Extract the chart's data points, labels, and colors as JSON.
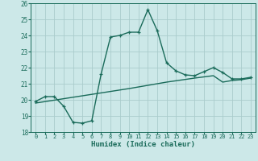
{
  "xlabel": "Humidex (Indice chaleur)",
  "bg_color": "#cce8e8",
  "line_color": "#1a6b5a",
  "grid_color": "#aacccc",
  "xlim": [
    -0.5,
    23.5
  ],
  "ylim": [
    18,
    26
  ],
  "xticks": [
    0,
    1,
    2,
    3,
    4,
    5,
    6,
    7,
    8,
    9,
    10,
    11,
    12,
    13,
    14,
    15,
    16,
    17,
    18,
    19,
    20,
    21,
    22,
    23
  ],
  "yticks": [
    18,
    19,
    20,
    21,
    22,
    23,
    24,
    25,
    26
  ],
  "main_x": [
    0,
    1,
    2,
    3,
    4,
    5,
    6,
    7,
    8,
    9,
    10,
    11,
    12,
    13,
    14,
    15,
    16,
    17,
    18,
    19,
    20,
    21,
    22,
    23
  ],
  "main_y": [
    19.9,
    20.2,
    20.2,
    19.6,
    18.6,
    18.55,
    18.7,
    21.6,
    23.9,
    24.0,
    24.2,
    24.2,
    25.6,
    24.3,
    22.3,
    21.8,
    21.55,
    21.5,
    21.75,
    22.0,
    21.7,
    21.3,
    21.3,
    21.4
  ],
  "trend_x": [
    0,
    5,
    10,
    14,
    17,
    19,
    20,
    21,
    22,
    23
  ],
  "trend_y": [
    19.8,
    20.25,
    20.7,
    21.1,
    21.35,
    21.5,
    21.1,
    21.2,
    21.25,
    21.35
  ]
}
